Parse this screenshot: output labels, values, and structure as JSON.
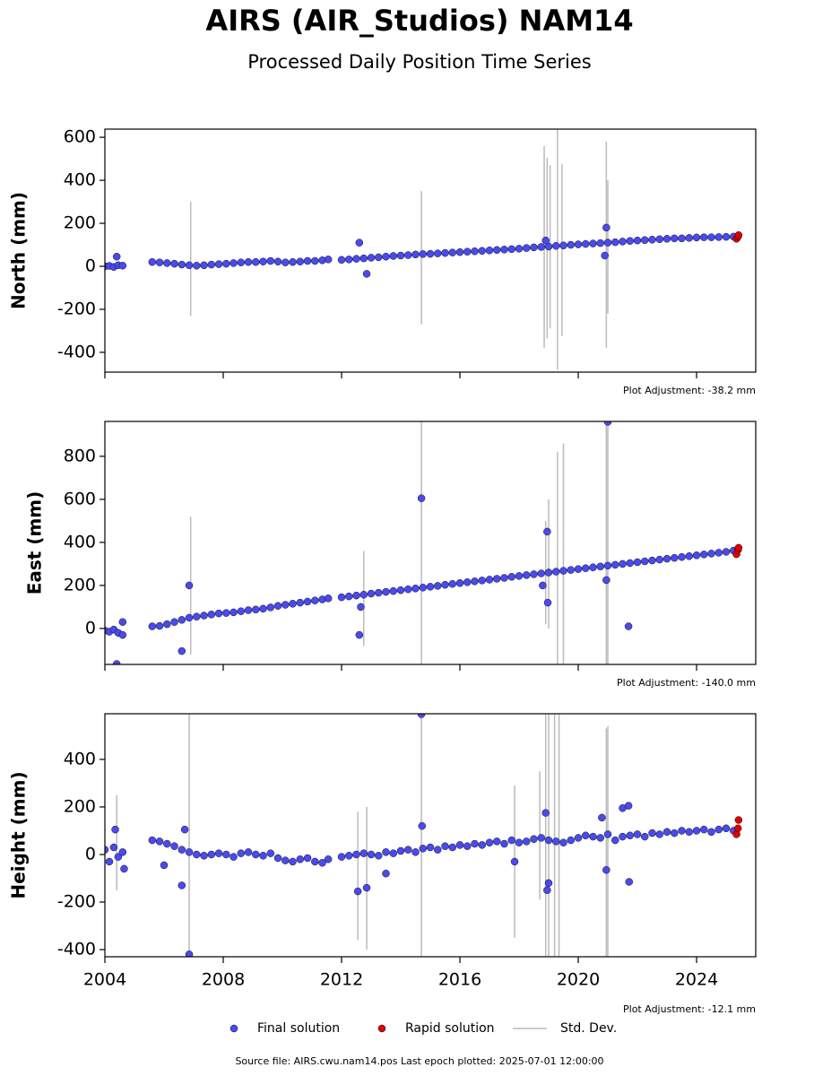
{
  "title": "AIRS (AIR_Studios) NAM14",
  "subtitle": "Processed Daily Position Time Series",
  "source": "Source file: AIRS.cwu.nam14.pos  Last epoch plotted: 2025-07-01 12:00:00",
  "chart_data": [
    {
      "type": "scatter",
      "ylabel": "North (mm)",
      "annotation": "Plot Adjustment: -38.2 mm",
      "xlim": [
        2004,
        2026
      ],
      "xticks": [
        2004,
        2008,
        2012,
        2016,
        2020,
        2024
      ],
      "ylim": [
        -492,
        638
      ],
      "yticks": [
        -400,
        -200,
        0,
        200,
        400,
        600
      ],
      "series": [
        {
          "name": "Final solution",
          "color": "#4a4aee",
          "x": [
            2004.0,
            2004.15,
            2004.3,
            2004.45,
            2004.6,
            2005.6,
            2005.85,
            2006.1,
            2006.35,
            2006.6,
            2006.85,
            2007.1,
            2007.35,
            2007.6,
            2007.85,
            2008.1,
            2008.35,
            2008.6,
            2008.85,
            2009.1,
            2009.35,
            2009.6,
            2009.85,
            2010.1,
            2010.35,
            2010.6,
            2010.85,
            2011.1,
            2011.35,
            2011.55,
            2012.0,
            2012.25,
            2012.5,
            2012.75,
            2013.0,
            2013.25,
            2013.5,
            2013.75,
            2014.0,
            2014.25,
            2014.5,
            2014.75,
            2015.0,
            2015.25,
            2015.5,
            2015.75,
            2016.0,
            2016.25,
            2016.5,
            2016.75,
            2017.0,
            2017.25,
            2017.5,
            2017.75,
            2018.0,
            2018.25,
            2018.5,
            2018.75,
            2019.0,
            2019.25,
            2019.5,
            2019.75,
            2020.0,
            2020.25,
            2020.5,
            2020.75,
            2021.0,
            2021.25,
            2021.5,
            2021.75,
            2022.0,
            2022.25,
            2022.5,
            2022.75,
            2023.0,
            2023.25,
            2023.5,
            2023.75,
            2024.0,
            2024.25,
            2024.5,
            2024.75,
            2025.0,
            2025.25,
            2004.4,
            2012.6,
            2012.85,
            2020.9,
            2020.95,
            2018.9
          ],
          "values": [
            0,
            2,
            -3,
            5,
            3,
            20,
            18,
            15,
            12,
            8,
            5,
            3,
            5,
            8,
            10,
            12,
            15,
            18,
            20,
            20,
            22,
            25,
            22,
            18,
            20,
            22,
            25,
            25,
            28,
            32,
            30,
            32,
            35,
            37,
            40,
            42,
            45,
            48,
            50,
            52,
            55,
            57,
            58,
            60,
            62,
            64,
            66,
            68,
            70,
            72,
            74,
            76,
            78,
            80,
            82,
            85,
            88,
            90,
            92,
            95,
            97,
            100,
            102,
            104,
            106,
            108,
            110,
            112,
            115,
            118,
            120,
            122,
            124,
            126,
            128,
            130,
            130,
            132,
            134,
            135,
            135,
            136,
            137,
            138,
            45,
            110,
            -35,
            50,
            180,
            120
          ]
        },
        {
          "name": "Rapid solution",
          "color": "#e00000",
          "x": [
            2025.35,
            2025.4,
            2025.42
          ],
          "values": [
            128,
            138,
            145
          ]
        },
        {
          "name": "Std. Dev.",
          "color": "#bbbbbb",
          "x": [
            2006.9,
            2014.7,
            2018.85,
            2018.95,
            2019.05,
            2019.3,
            2019.45,
            2020.95,
            2021.0
          ],
          "values": [
            35,
            40,
            90,
            85,
            90,
            80,
            75,
            100,
            90
          ],
          "errors": [
            265,
            310,
            470,
            420,
            380,
            560,
            400,
            480,
            310
          ]
        }
      ]
    },
    {
      "type": "scatter",
      "ylabel": "East (mm)",
      "annotation": "Plot Adjustment: -140.0 mm",
      "xlim": [
        2004,
        2026
      ],
      "xticks": [
        2004,
        2008,
        2012,
        2016,
        2020,
        2024
      ],
      "ylim": [
        -167,
        962
      ],
      "yticks": [
        0,
        200,
        400,
        600,
        800
      ],
      "series": [
        {
          "name": "Final solution",
          "color": "#4a4aee",
          "x": [
            2004.0,
            2004.15,
            2004.3,
            2004.45,
            2004.6,
            2005.6,
            2005.85,
            2006.1,
            2006.35,
            2006.6,
            2006.85,
            2007.1,
            2007.35,
            2007.6,
            2007.85,
            2008.1,
            2008.35,
            2008.6,
            2008.85,
            2009.1,
            2009.35,
            2009.6,
            2009.85,
            2010.1,
            2010.35,
            2010.6,
            2010.85,
            2011.1,
            2011.35,
            2011.55,
            2012.0,
            2012.25,
            2012.5,
            2012.75,
            2013.0,
            2013.25,
            2013.5,
            2013.75,
            2014.0,
            2014.25,
            2014.5,
            2014.75,
            2015.0,
            2015.25,
            2015.5,
            2015.75,
            2016.0,
            2016.25,
            2016.5,
            2016.75,
            2017.0,
            2017.25,
            2017.5,
            2017.75,
            2018.0,
            2018.25,
            2018.5,
            2018.75,
            2019.0,
            2019.25,
            2019.5,
            2019.75,
            2020.0,
            2020.25,
            2020.5,
            2020.75,
            2021.0,
            2021.25,
            2021.5,
            2021.75,
            2022.0,
            2022.25,
            2022.5,
            2022.75,
            2023.0,
            2023.25,
            2023.5,
            2023.75,
            2024.0,
            2024.25,
            2024.5,
            2024.75,
            2025.0,
            2025.25,
            2004.6,
            2004.4,
            2006.6,
            2006.85,
            2012.6,
            2012.65,
            2014.7,
            2018.95,
            2018.97,
            2018.8,
            2021.0,
            2021.7,
            2020.95
          ],
          "values": [
            -10,
            -15,
            -5,
            -20,
            -30,
            10,
            12,
            20,
            30,
            40,
            50,
            55,
            60,
            65,
            70,
            72,
            75,
            80,
            85,
            88,
            92,
            98,
            105,
            110,
            115,
            120,
            125,
            130,
            135,
            140,
            145,
            149,
            153,
            157,
            162,
            166,
            170,
            174,
            178,
            182,
            186,
            190,
            194,
            198,
            203,
            207,
            211,
            215,
            219,
            223,
            227,
            231,
            235,
            240,
            244,
            248,
            252,
            256,
            260,
            264,
            268,
            272,
            276,
            280,
            284,
            288,
            292,
            296,
            300,
            304,
            308,
            312,
            316,
            320,
            324,
            328,
            332,
            336,
            340,
            344,
            348,
            352,
            356,
            362,
            30,
            -165,
            -105,
            200,
            -30,
            100,
            605,
            450,
            120,
            200,
            960,
            10,
            225
          ]
        },
        {
          "name": "Rapid solution",
          "color": "#e00000",
          "x": [
            2025.35,
            2025.4,
            2025.42
          ],
          "values": [
            345,
            365,
            375
          ]
        },
        {
          "name": "Std. Dev.",
          "color": "#bbbbbb",
          "x": [
            2006.9,
            2012.75,
            2014.7,
            2018.9,
            2019.0,
            2019.3,
            2019.5,
            2020.95,
            2021.0
          ],
          "values": [
            200,
            140,
            180,
            260,
            300,
            260,
            280,
            300,
            280
          ],
          "errors": [
            320,
            220,
            800,
            240,
            300,
            560,
            580,
            700,
            680
          ]
        }
      ]
    },
    {
      "type": "scatter",
      "ylabel": "Height (mm)",
      "annotation": "Plot Adjustment: -12.1 mm",
      "xlim": [
        2004,
        2026
      ],
      "xticks": [
        2004,
        2008,
        2012,
        2016,
        2020,
        2024
      ],
      "ylim": [
        -430,
        592
      ],
      "yticks": [
        -400,
        -200,
        0,
        200,
        400
      ],
      "series": [
        {
          "name": "Final solution",
          "color": "#4a4aee",
          "x": [
            2004.0,
            2004.15,
            2004.3,
            2004.45,
            2004.6,
            2005.6,
            2005.85,
            2006.1,
            2006.35,
            2006.6,
            2006.85,
            2007.1,
            2007.35,
            2007.6,
            2007.85,
            2008.1,
            2008.35,
            2008.6,
            2008.85,
            2009.1,
            2009.35,
            2009.6,
            2009.85,
            2010.1,
            2010.35,
            2010.6,
            2010.85,
            2011.1,
            2011.35,
            2011.55,
            2012.0,
            2012.25,
            2012.5,
            2012.75,
            2013.0,
            2013.25,
            2013.5,
            2013.75,
            2014.0,
            2014.25,
            2014.5,
            2014.75,
            2015.0,
            2015.25,
            2015.5,
            2015.75,
            2016.0,
            2016.25,
            2016.5,
            2016.75,
            2017.0,
            2017.25,
            2017.5,
            2017.75,
            2018.0,
            2018.25,
            2018.5,
            2018.75,
            2019.0,
            2019.25,
            2019.5,
            2019.75,
            2020.0,
            2020.25,
            2020.5,
            2020.75,
            2021.0,
            2021.25,
            2021.5,
            2021.75,
            2022.0,
            2022.25,
            2022.5,
            2022.75,
            2023.0,
            2023.25,
            2023.5,
            2023.75,
            2024.0,
            2024.25,
            2024.5,
            2024.75,
            2025.0,
            2025.25,
            2004.35,
            2004.65,
            2006.0,
            2006.6,
            2006.7,
            2006.85,
            2012.55,
            2012.85,
            2013.5,
            2014.7,
            2014.72,
            2017.85,
            2018.9,
            2018.95,
            2019.0,
            2020.95,
            2021.5,
            2021.7,
            2021.72,
            2020.8
          ],
          "values": [
            20,
            -30,
            30,
            -10,
            10,
            60,
            55,
            45,
            35,
            20,
            10,
            0,
            -5,
            0,
            5,
            0,
            -10,
            5,
            10,
            0,
            -5,
            5,
            -15,
            -25,
            -30,
            -20,
            -15,
            -30,
            -35,
            -20,
            -10,
            -5,
            0,
            5,
            0,
            -5,
            10,
            5,
            15,
            20,
            10,
            25,
            30,
            20,
            35,
            30,
            40,
            35,
            45,
            40,
            50,
            55,
            45,
            60,
            50,
            55,
            65,
            70,
            60,
            55,
            50,
            60,
            70,
            80,
            75,
            70,
            85,
            60,
            75,
            80,
            85,
            75,
            90,
            85,
            95,
            90,
            100,
            95,
            100,
            105,
            95,
            105,
            110,
            100,
            105,
            -60,
            -45,
            -130,
            105,
            -420,
            -155,
            -140,
            -80,
            590,
            120,
            -30,
            175,
            -150,
            -120,
            -65,
            195,
            205,
            -115,
            155
          ]
        },
        {
          "name": "Rapid solution",
          "color": "#e00000",
          "x": [
            2025.35,
            2025.4,
            2025.42
          ],
          "values": [
            85,
            110,
            145
          ]
        },
        {
          "name": "Std. Dev.",
          "color": "#bbbbbb",
          "x": [
            2004.4,
            2006.85,
            2012.55,
            2012.85,
            2014.7,
            2017.85,
            2018.7,
            2018.9,
            2019.0,
            2019.2,
            2019.35,
            2020.95,
            2021.0
          ],
          "values": [
            50,
            100,
            -90,
            -100,
            100,
            -30,
            80,
            100,
            60,
            80,
            50,
            30,
            40
          ],
          "errors": [
            200,
            700,
            270,
            300,
            900,
            320,
            270,
            700,
            600,
            700,
            600,
            500,
            500
          ]
        }
      ]
    }
  ]
}
